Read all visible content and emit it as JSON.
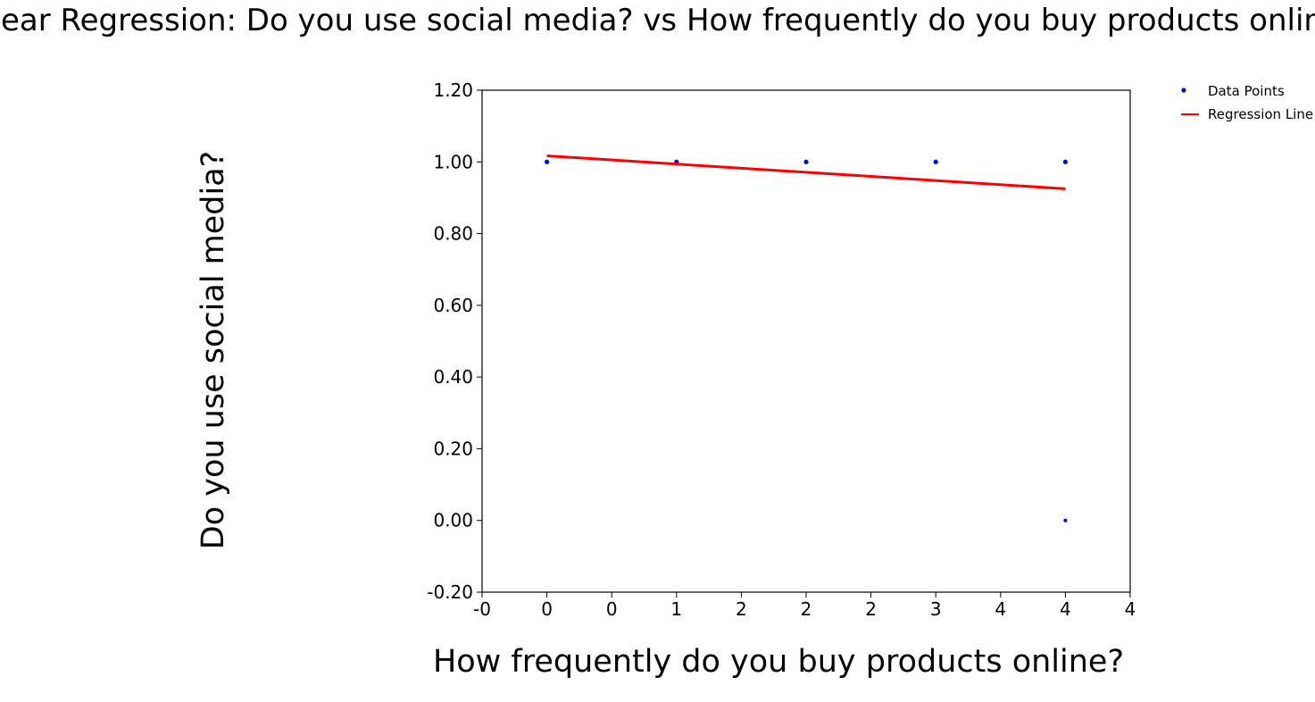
{
  "chart_data": {
    "type": "scatter",
    "title": "Linear Regression: Do you use social media? vs How frequently do you buy products online?",
    "xlabel": "How frequently do you buy products online?",
    "ylabel": "Do you use social media?",
    "xlim": [
      -0.25,
      4.75
    ],
    "ylim": [
      -0.2,
      1.2
    ],
    "x_tick_values": [
      -0.25,
      0.25,
      0.75,
      1.25,
      1.75,
      2.25,
      2.75,
      3.25,
      3.75,
      4.25,
      4.75
    ],
    "x_tick_labels": [
      "-0",
      "0",
      "0",
      "1",
      "2",
      "2",
      "2",
      "3",
      "4",
      "4",
      "4"
    ],
    "y_tick_values": [
      -0.2,
      0.0,
      0.2,
      0.4,
      0.6,
      0.8,
      1.0,
      1.2
    ],
    "y_tick_labels": [
      "-0.20",
      "0.00",
      "0.20",
      "0.40",
      "0.60",
      "0.80",
      "1.00",
      "1.20"
    ],
    "grid": false,
    "legend_placement": "outside-top-right",
    "series": [
      {
        "name": "Data Points",
        "kind": "scatter",
        "color": "#0000ff",
        "points": [
          {
            "x": 0.25,
            "y": 1.0
          },
          {
            "x": 1.25,
            "y": 1.0
          },
          {
            "x": 2.25,
            "y": 1.0
          },
          {
            "x": 3.25,
            "y": 1.0
          },
          {
            "x": 4.25,
            "y": 1.0
          },
          {
            "x": 4.25,
            "y": 0.0
          }
        ]
      },
      {
        "name": "Regression Line",
        "kind": "line",
        "color": "#ff0000",
        "points": [
          {
            "x": 0.25,
            "y": 1.017
          },
          {
            "x": 4.25,
            "y": 0.925
          }
        ]
      }
    ]
  }
}
